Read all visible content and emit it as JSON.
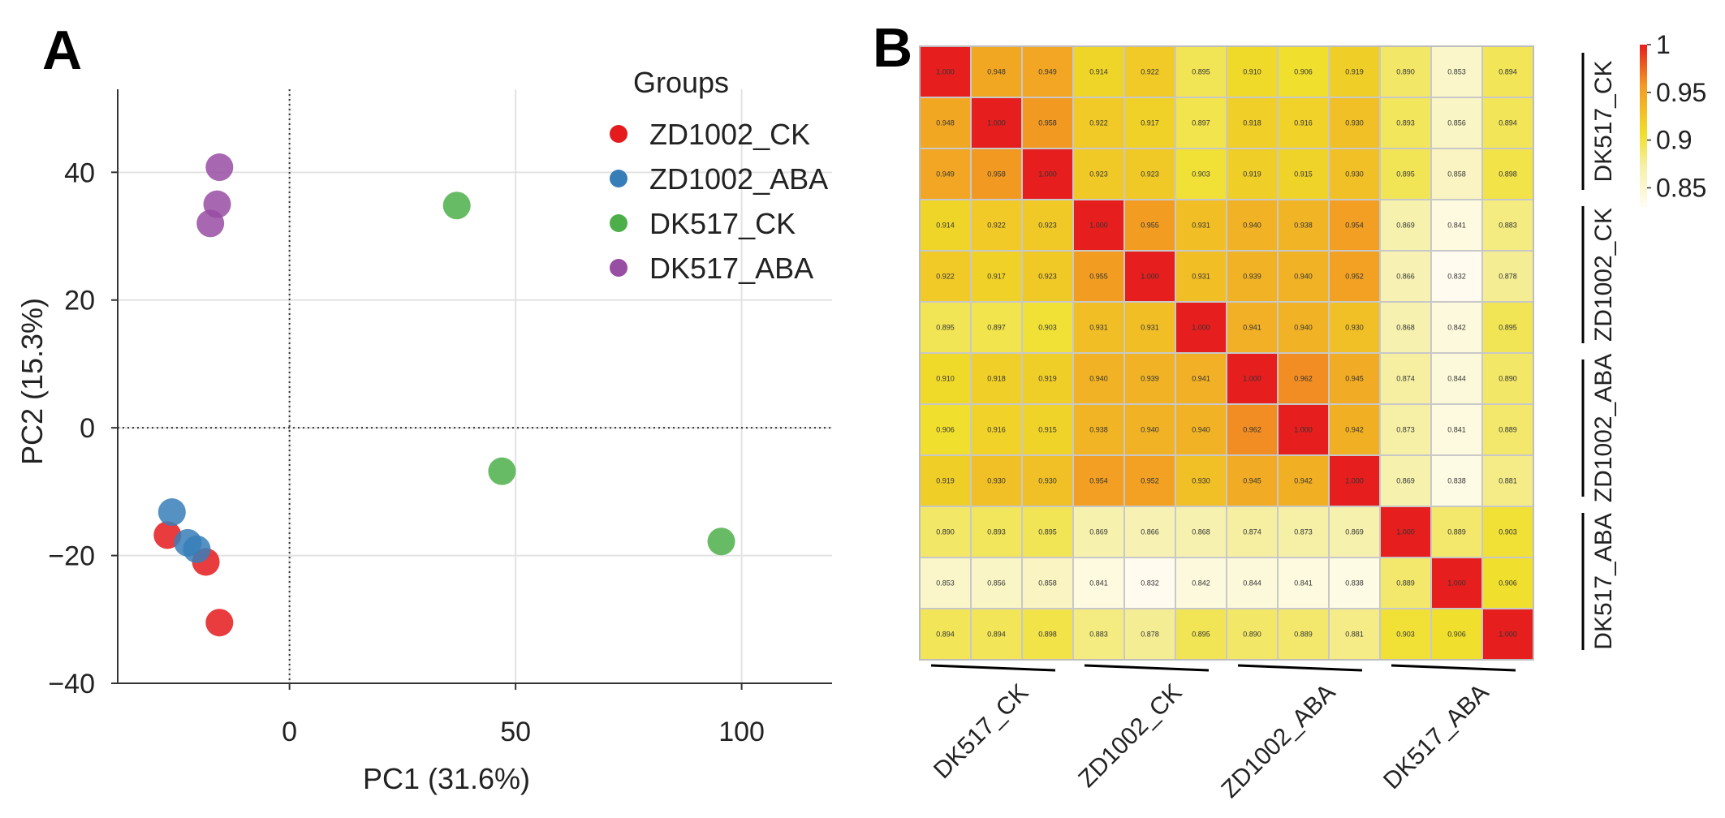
{
  "panels": {
    "a_label": "A",
    "b_label": "B"
  },
  "chart_data": [
    {
      "type": "scatter",
      "title": "",
      "xlabel": "PC1 (31.6%)",
      "ylabel": "PC2 (15.3%)",
      "xlim": [
        -38,
        120
      ],
      "ylim": [
        -40,
        53
      ],
      "xticks": [
        0,
        50,
        100
      ],
      "yticks": [
        -40,
        -20,
        0,
        20,
        40
      ],
      "xtick_labels": [
        "0",
        "50",
        "100"
      ],
      "ytick_labels": [
        "−40",
        "−20",
        "0",
        "20",
        "40"
      ],
      "grid": true,
      "legend_title": "Groups",
      "legend_position": "top-right",
      "series": [
        {
          "name": "ZD1002_CK",
          "color": "#E41A1C",
          "points": [
            [
              -27,
              -16.8
            ],
            [
              -18.5,
              -21
            ],
            [
              -15.5,
              -30.5
            ]
          ]
        },
        {
          "name": "ZD1002_ABA",
          "color": "#377EB8",
          "points": [
            [
              -26,
              -13.2
            ],
            [
              -22.5,
              -18
            ],
            [
              -20.5,
              -19
            ]
          ]
        },
        {
          "name": "DK517_CK",
          "color": "#4DAF4A",
          "points": [
            [
              37,
              34.8
            ],
            [
              47,
              -6.8
            ],
            [
              95.5,
              -17.8
            ]
          ]
        },
        {
          "name": "DK517_ABA",
          "color": "#984EA3",
          "points": [
            [
              -15.5,
              40.8
            ],
            [
              -16,
              35
            ],
            [
              -17.5,
              32
            ]
          ]
        }
      ]
    },
    {
      "type": "heatmap",
      "title": "",
      "colorbar": {
        "min": 0.83,
        "max": 1,
        "ticks": [
          1,
          0.95,
          0.9,
          0.85
        ],
        "tick_labels": [
          "1",
          "0.95",
          "0.9",
          "0.85"
        ]
      },
      "row_groups": [
        "DK517_CK",
        "ZD1002_CK",
        "ZD1002_ABA",
        "DK517_ABA"
      ],
      "col_groups": [
        "DK517_CK",
        "ZD1002_CK",
        "ZD1002_ABA",
        "DK517_ABA"
      ],
      "diagonal_value": 1.0,
      "matrix": [
        [
          1.0,
          0.948,
          0.949,
          0.914,
          0.922,
          0.895,
          0.91,
          0.906,
          0.919,
          0.89,
          0.853,
          0.894
        ],
        [
          0.948,
          1.0,
          0.958,
          0.922,
          0.917,
          0.897,
          0.918,
          0.916,
          0.93,
          0.893,
          0.856,
          0.894
        ],
        [
          0.949,
          0.958,
          1.0,
          0.923,
          0.923,
          0.903,
          0.919,
          0.915,
          0.93,
          0.895,
          0.858,
          0.898
        ],
        [
          0.914,
          0.922,
          0.923,
          1.0,
          0.955,
          0.931,
          0.94,
          0.938,
          0.954,
          0.869,
          0.841,
          0.883
        ],
        [
          0.922,
          0.917,
          0.923,
          0.955,
          1.0,
          0.931,
          0.939,
          0.94,
          0.952,
          0.866,
          0.832,
          0.878
        ],
        [
          0.895,
          0.897,
          0.903,
          0.931,
          0.931,
          1.0,
          0.941,
          0.94,
          0.93,
          0.868,
          0.842,
          0.895
        ],
        [
          0.91,
          0.918,
          0.919,
          0.94,
          0.939,
          0.941,
          1.0,
          0.962,
          0.945,
          0.874,
          0.844,
          0.89
        ],
        [
          0.906,
          0.916,
          0.915,
          0.938,
          0.94,
          0.94,
          0.962,
          1.0,
          0.942,
          0.873,
          0.841,
          0.889
        ],
        [
          0.919,
          0.93,
          0.93,
          0.954,
          0.952,
          0.93,
          0.945,
          0.942,
          1.0,
          0.869,
          0.838,
          0.881
        ],
        [
          0.89,
          0.893,
          0.895,
          0.869,
          0.866,
          0.868,
          0.874,
          0.873,
          0.869,
          1.0,
          0.889,
          0.903
        ],
        [
          0.853,
          0.856,
          0.858,
          0.841,
          0.832,
          0.842,
          0.844,
          0.841,
          0.838,
          0.889,
          1.0,
          0.906
        ],
        [
          0.894,
          0.894,
          0.898,
          0.883,
          0.878,
          0.895,
          0.89,
          0.889,
          0.881,
          0.903,
          0.906,
          1.0
        ]
      ]
    }
  ]
}
